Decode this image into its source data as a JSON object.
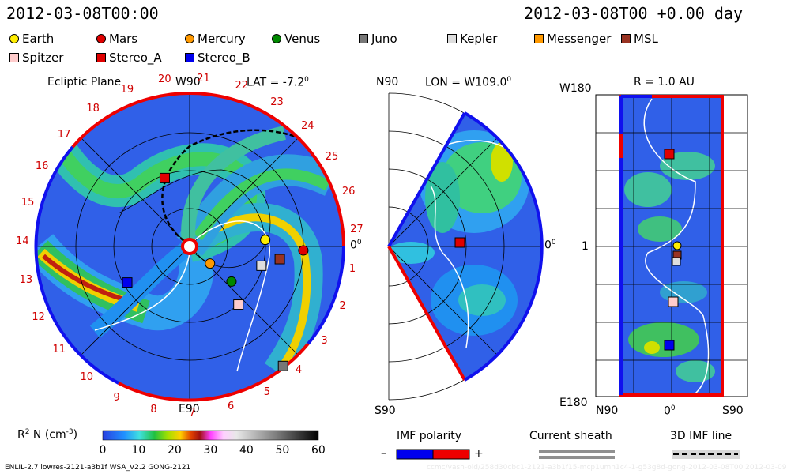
{
  "header": {
    "left_time": "2012-03-08T00:00",
    "right_time": "2012-03-08T00 +0.00 day"
  },
  "legend": [
    {
      "name": "Earth",
      "color": "#ffee00",
      "shape": "circle"
    },
    {
      "name": "Mars",
      "color": "#e00000",
      "shape": "circle"
    },
    {
      "name": "Mercury",
      "color": "#ff9900",
      "shape": "circle"
    },
    {
      "name": "Venus",
      "color": "#008800",
      "shape": "circle"
    },
    {
      "name": "Juno",
      "color": "#777777",
      "shape": "square"
    },
    {
      "name": "Kepler",
      "color": "#dddddd",
      "shape": "square"
    },
    {
      "name": "Messenger",
      "color": "#ff9900",
      "shape": "square"
    },
    {
      "name": "MSL",
      "color": "#993322",
      "shape": "square"
    },
    {
      "name": "Spitzer",
      "color": "#ffcccc",
      "shape": "square"
    },
    {
      "name": "Stereo_A",
      "color": "#e00000",
      "shape": "square"
    },
    {
      "name": "Stereo_B",
      "color": "#0000ee",
      "shape": "square"
    }
  ],
  "panel_ecliptic": {
    "title": "Ecliptic Plane",
    "w90": "W90",
    "lat": "LAT = -7.2",
    "lat_sup": "0",
    "e90": "E90",
    "zero": "0",
    "zero_sup": "0",
    "carrington_ticks": [
      "1",
      "2",
      "3",
      "4",
      "5",
      "6",
      "7",
      "8",
      "9",
      "10",
      "11",
      "12",
      "13",
      "14",
      "15",
      "16",
      "17",
      "18",
      "19",
      "20",
      "21",
      "22",
      "23",
      "24",
      "25",
      "26",
      "27"
    ]
  },
  "panel_meridional": {
    "n90": "N90",
    "lon": "LON = W109.0",
    "lon_sup": "0",
    "s90": "S90",
    "zero": "0",
    "zero_sup": "0"
  },
  "panel_radial": {
    "r": "R = 1.0 AU",
    "w180": "W180",
    "e180": "E180",
    "one": "1",
    "n90": "N90",
    "zero": "0",
    "zero_sup": "0",
    "s90": "S90"
  },
  "chart_data": {
    "type": "heatmap",
    "colorbar": {
      "label_main": "R",
      "label_sup": "2",
      "label_rest": " N (cm",
      "label_exp": "-3",
      "label_end": ")",
      "ticks": [
        "0",
        "10",
        "20",
        "30",
        "40",
        "50",
        "60"
      ],
      "range": [
        0,
        60
      ]
    },
    "ecliptic_bodies": [
      {
        "name": "Earth",
        "angle_deg": 5,
        "r_au": 1.0
      },
      {
        "name": "Mars",
        "angle_deg": -2,
        "r_au": 1.5
      },
      {
        "name": "Mercury",
        "angle_deg": -40,
        "r_au": 0.35
      },
      {
        "name": "Venus",
        "angle_deg": -40,
        "r_au": 0.72
      },
      {
        "name": "Juno",
        "angle_deg": -52,
        "r_au": 2.0
      },
      {
        "name": "Kepler",
        "angle_deg": -15,
        "r_au": 0.98
      },
      {
        "name": "MSL",
        "angle_deg": -8,
        "r_au": 1.2
      },
      {
        "name": "Spitzer",
        "angle_deg": -50,
        "r_au": 1.0
      },
      {
        "name": "Stereo_A",
        "angle_deg": 110,
        "r_au": 0.96
      },
      {
        "name": "Stereo_B",
        "angle_deg": -150,
        "r_au": 0.95
      }
    ]
  },
  "bottom_legend": {
    "imf_polarity": "IMF polarity",
    "minus": "–",
    "plus": "+",
    "current_sheath": "Current sheath",
    "imf_line": "3D IMF line"
  },
  "footer": {
    "left": "ENLIL-2.7 lowres-2121-a3b1f WSA_V2.2 GONG-2121",
    "right": "ccmc/vash-old/258d30cbc1-2121-a3b1f15-mcp1umn1c4-1-g53g8d-gong-2012-03-08T00    2012-03-09"
  }
}
